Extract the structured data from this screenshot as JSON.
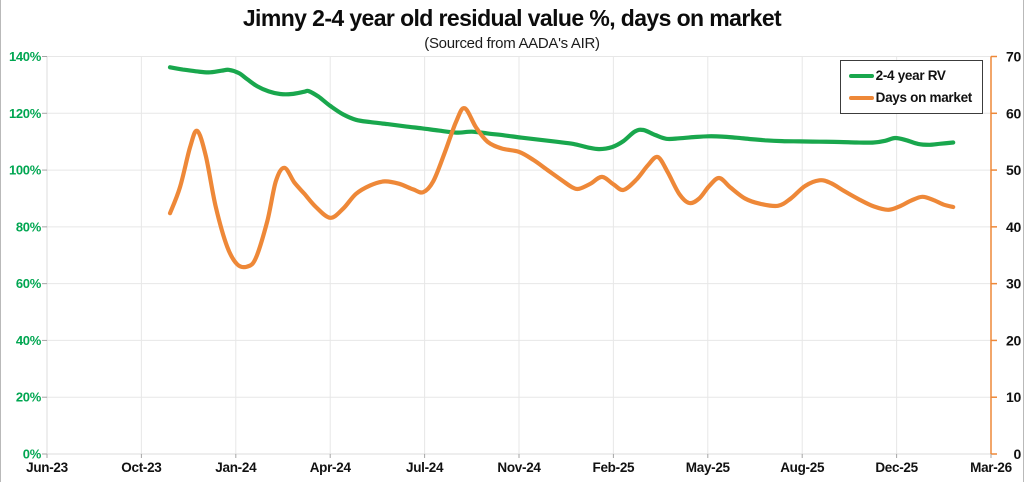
{
  "chart_data": {
    "type": "line",
    "title": "Jimny 2-4 year old residual value %, days on market",
    "subtitle": "(Sourced from AADA's AIR)",
    "grid": true,
    "legend_position": "top-right",
    "x_axis": {
      "tick_labels": [
        "Jun-23",
        "Oct-23",
        "Jan-24",
        "Apr-24",
        "Jul-24",
        "Nov-24",
        "Feb-25",
        "May-25",
        "Aug-25",
        "Dec-25",
        "Mar-26"
      ],
      "range_months": [
        0,
        33
      ],
      "points_unit": "months since Jun-2023"
    },
    "y_left": {
      "min": 0,
      "max": 140,
      "step": 20,
      "suffix": "%",
      "label_color": "#00A651"
    },
    "y_right": {
      "min": 0,
      "max": 70,
      "step": 10,
      "suffix": "",
      "label_color": "#111111"
    },
    "series": [
      {
        "name": "2-4 year RV",
        "axis": "left",
        "color": "#19A74D",
        "points": [
          [
            4.3,
            136.2
          ],
          [
            4.75,
            135.4
          ],
          [
            5.2,
            134.8
          ],
          [
            5.65,
            134.4
          ],
          [
            6.1,
            135.0
          ],
          [
            6.35,
            135.3
          ],
          [
            6.7,
            134.2
          ],
          [
            7.0,
            132.0
          ],
          [
            7.35,
            129.5
          ],
          [
            7.75,
            127.7
          ],
          [
            8.15,
            126.8
          ],
          [
            8.55,
            126.8
          ],
          [
            9.0,
            127.6
          ],
          [
            9.15,
            127.8
          ],
          [
            9.5,
            125.8
          ],
          [
            9.9,
            122.6
          ],
          [
            10.35,
            119.6
          ],
          [
            10.8,
            117.7
          ],
          [
            11.3,
            116.9
          ],
          [
            11.9,
            116.2
          ],
          [
            12.5,
            115.4
          ],
          [
            13.1,
            114.7
          ],
          [
            13.7,
            113.9
          ],
          [
            14.3,
            113.2
          ],
          [
            14.85,
            113.5
          ],
          [
            15.4,
            112.9
          ],
          [
            16.0,
            112.2
          ],
          [
            16.6,
            111.4
          ],
          [
            17.2,
            110.7
          ],
          [
            17.8,
            110.0
          ],
          [
            18.4,
            109.2
          ],
          [
            18.9,
            108.0
          ],
          [
            19.3,
            107.4
          ],
          [
            19.75,
            108.1
          ],
          [
            20.15,
            110.2
          ],
          [
            20.55,
            113.6
          ],
          [
            20.85,
            114.1
          ],
          [
            21.25,
            112.4
          ],
          [
            21.65,
            111.0
          ],
          [
            22.1,
            111.2
          ],
          [
            22.6,
            111.6
          ],
          [
            23.1,
            111.9
          ],
          [
            23.6,
            111.8
          ],
          [
            24.1,
            111.4
          ],
          [
            24.6,
            110.9
          ],
          [
            25.1,
            110.5
          ],
          [
            25.7,
            110.2
          ],
          [
            26.3,
            110.1
          ],
          [
            27.0,
            110.0
          ],
          [
            27.7,
            109.9
          ],
          [
            28.3,
            109.7
          ],
          [
            28.9,
            109.7
          ],
          [
            29.3,
            110.3
          ],
          [
            29.65,
            111.3
          ],
          [
            30.05,
            110.5
          ],
          [
            30.45,
            109.2
          ],
          [
            30.85,
            108.9
          ],
          [
            31.25,
            109.3
          ],
          [
            31.68,
            109.7
          ]
        ]
      },
      {
        "name": "Days on market",
        "axis": "right",
        "color": "#EE8838",
        "points": [
          [
            4.3,
            42.4
          ],
          [
            4.65,
            47.0
          ],
          [
            5.0,
            54.0
          ],
          [
            5.25,
            56.9
          ],
          [
            5.55,
            52.5
          ],
          [
            5.9,
            43.5
          ],
          [
            6.3,
            36.5
          ],
          [
            6.65,
            33.4
          ],
          [
            7.0,
            33.0
          ],
          [
            7.3,
            34.5
          ],
          [
            7.7,
            41.0
          ],
          [
            8.0,
            48.0
          ],
          [
            8.3,
            50.4
          ],
          [
            8.65,
            47.8
          ],
          [
            9.0,
            45.8
          ],
          [
            9.4,
            43.5
          ],
          [
            9.9,
            41.6
          ],
          [
            10.35,
            43.2
          ],
          [
            10.8,
            45.8
          ],
          [
            11.3,
            47.3
          ],
          [
            11.8,
            48.0
          ],
          [
            12.3,
            47.6
          ],
          [
            12.8,
            46.6
          ],
          [
            13.15,
            46.1
          ],
          [
            13.5,
            48.0
          ],
          [
            13.9,
            53.0
          ],
          [
            14.3,
            58.5
          ],
          [
            14.6,
            60.9
          ],
          [
            15.0,
            57.5
          ],
          [
            15.4,
            55.0
          ],
          [
            15.9,
            53.8
          ],
          [
            16.5,
            53.2
          ],
          [
            17.0,
            51.8
          ],
          [
            17.5,
            50.0
          ],
          [
            18.0,
            48.2
          ],
          [
            18.35,
            47.0
          ],
          [
            18.6,
            46.7
          ],
          [
            19.0,
            47.6
          ],
          [
            19.4,
            48.8
          ],
          [
            19.8,
            47.5
          ],
          [
            20.15,
            46.5
          ],
          [
            20.6,
            48.3
          ],
          [
            21.0,
            50.8
          ],
          [
            21.35,
            52.3
          ],
          [
            21.7,
            49.6
          ],
          [
            22.1,
            45.8
          ],
          [
            22.45,
            44.2
          ],
          [
            22.8,
            45.0
          ],
          [
            23.15,
            47.2
          ],
          [
            23.5,
            48.6
          ],
          [
            23.9,
            46.9
          ],
          [
            24.4,
            45.0
          ],
          [
            24.9,
            44.1
          ],
          [
            25.55,
            43.7
          ],
          [
            26.0,
            45.0
          ],
          [
            26.5,
            47.2
          ],
          [
            27.0,
            48.2
          ],
          [
            27.4,
            47.7
          ],
          [
            27.9,
            46.2
          ],
          [
            28.4,
            44.8
          ],
          [
            28.9,
            43.6
          ],
          [
            29.4,
            43.0
          ],
          [
            29.8,
            43.6
          ],
          [
            30.2,
            44.6
          ],
          [
            30.6,
            45.3
          ],
          [
            31.0,
            44.7
          ],
          [
            31.35,
            43.9
          ],
          [
            31.68,
            43.5
          ]
        ]
      }
    ],
    "style": {
      "grid_color": "#E7E7E7",
      "spine_color": "#DCDCDC",
      "right_spine_color": "#EE8838",
      "tick_color": "#A6A6A6",
      "x_label_color": "#111111"
    }
  }
}
